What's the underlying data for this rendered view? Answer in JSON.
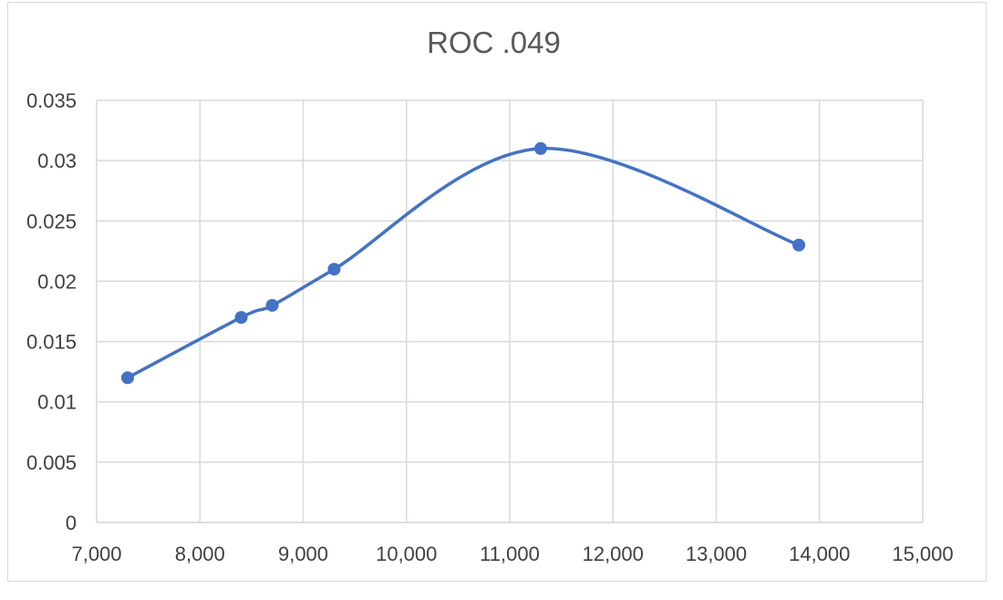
{
  "chart_data": {
    "type": "scatter",
    "title": "ROC .049",
    "xlabel": "",
    "ylabel": "",
    "xlim": [
      7000,
      15000
    ],
    "ylim": [
      0,
      0.035
    ],
    "x_ticks": [
      "7,000",
      "8,000",
      "9,000",
      "10,000",
      "11,000",
      "12,000",
      "13,000",
      "14,000",
      "15,000"
    ],
    "y_ticks": [
      "0",
      "0.005",
      "0.01",
      "0.015",
      "0.02",
      "0.025",
      "0.03",
      "0.035"
    ],
    "grid": true,
    "smooth_line": true,
    "series": [
      {
        "color": "#4472c4",
        "points": [
          {
            "x": 7300,
            "y": 0.012
          },
          {
            "x": 8400,
            "y": 0.017
          },
          {
            "x": 8700,
            "y": 0.018
          },
          {
            "x": 9300,
            "y": 0.021
          },
          {
            "x": 11300,
            "y": 0.031
          },
          {
            "x": 13800,
            "y": 0.023
          }
        ]
      }
    ]
  }
}
